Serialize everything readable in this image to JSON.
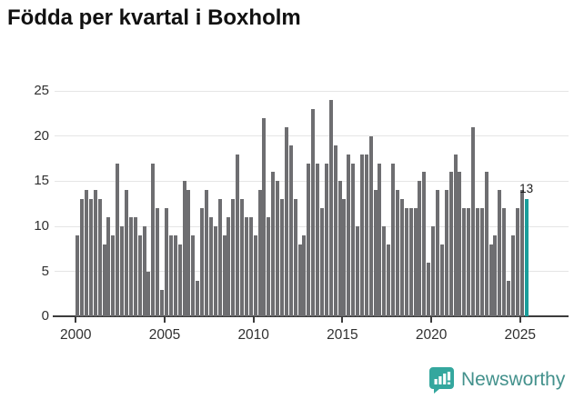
{
  "title": "Födda per kvartal i Boxholm",
  "annotation": {
    "last_value_label": "13"
  },
  "footer": {
    "brand": "Newsworthy"
  },
  "colors": {
    "bar": "#6e6e71",
    "highlight": "#1a9e9b",
    "grid": "#e5e5e5",
    "axis": "#3c3c3c",
    "tick_text": "#303030",
    "title_text": "#111111",
    "brand_icon": "#34a79e",
    "brand_text": "#43918c"
  },
  "chart_data": {
    "type": "bar",
    "title": "Födda per kvartal i Boxholm",
    "xlabel": "",
    "ylabel": "",
    "ylim": [
      0,
      25
    ],
    "grid": true,
    "y_ticks": [
      0,
      5,
      10,
      15,
      20,
      25
    ],
    "x_tick_labels": [
      "2000",
      "2005",
      "2010",
      "2015",
      "2020",
      "2025"
    ],
    "unit": "births per quarter",
    "start_quarter": "2000-Q1",
    "end_quarter": "2025-Q2",
    "highlight_last": true,
    "series": [
      {
        "year": 2000,
        "values": [
          9,
          13,
          14,
          13
        ]
      },
      {
        "year": 2001,
        "values": [
          14,
          13,
          8,
          11
        ]
      },
      {
        "year": 2002,
        "values": [
          9,
          17,
          10,
          14
        ]
      },
      {
        "year": 2003,
        "values": [
          11,
          11,
          9,
          10
        ]
      },
      {
        "year": 2004,
        "values": [
          5,
          17,
          12,
          3
        ]
      },
      {
        "year": 2005,
        "values": [
          12,
          9,
          9,
          8
        ]
      },
      {
        "year": 2006,
        "values": [
          15,
          14,
          9,
          4
        ]
      },
      {
        "year": 2007,
        "values": [
          12,
          14,
          11,
          10
        ]
      },
      {
        "year": 2008,
        "values": [
          13,
          9,
          11,
          13
        ]
      },
      {
        "year": 2009,
        "values": [
          18,
          13,
          11,
          11
        ]
      },
      {
        "year": 2010,
        "values": [
          9,
          14,
          22,
          11
        ]
      },
      {
        "year": 2011,
        "values": [
          16,
          15,
          13,
          21
        ]
      },
      {
        "year": 2012,
        "values": [
          19,
          13,
          8,
          9
        ]
      },
      {
        "year": 2013,
        "values": [
          17,
          23,
          17,
          12
        ]
      },
      {
        "year": 2014,
        "values": [
          17,
          24,
          19,
          15
        ]
      },
      {
        "year": 2015,
        "values": [
          13,
          18,
          17,
          10
        ]
      },
      {
        "year": 2016,
        "values": [
          18,
          18,
          20,
          14
        ]
      },
      {
        "year": 2017,
        "values": [
          17,
          10,
          8,
          17
        ]
      },
      {
        "year": 2018,
        "values": [
          14,
          13,
          12,
          12
        ]
      },
      {
        "year": 2019,
        "values": [
          12,
          15,
          16,
          6
        ]
      },
      {
        "year": 2020,
        "values": [
          10,
          14,
          8,
          14
        ]
      },
      {
        "year": 2021,
        "values": [
          16,
          18,
          16,
          12
        ]
      },
      {
        "year": 2022,
        "values": [
          12,
          21,
          12,
          12
        ]
      },
      {
        "year": 2023,
        "values": [
          16,
          8,
          9,
          14
        ]
      },
      {
        "year": 2024,
        "values": [
          12,
          4,
          9,
          12
        ]
      },
      {
        "year": 2025,
        "values": [
          14,
          13
        ]
      }
    ]
  }
}
